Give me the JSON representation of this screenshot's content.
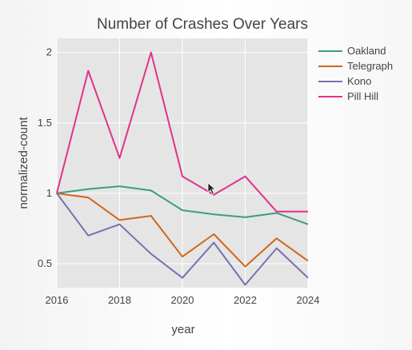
{
  "chart_data": {
    "type": "line",
    "title": "Number of Crashes Over Years",
    "xlabel": "year",
    "ylabel": "normalized-count",
    "x": [
      2016,
      2017,
      2018,
      2019,
      2020,
      2021,
      2022,
      2023,
      2024
    ],
    "xlim": [
      2016,
      2024
    ],
    "ylim": [
      0.33,
      2.1
    ],
    "x_ticks": [
      "2016",
      "2018",
      "2020",
      "2022",
      "2024"
    ],
    "y_ticks": [
      "0.5",
      "1",
      "1.5",
      "2"
    ],
    "grid": true,
    "legend_position": "right",
    "series": [
      {
        "name": "Oakland",
        "color": "#3a9f7e",
        "values": [
          1.0,
          1.03,
          1.05,
          1.02,
          0.88,
          0.85,
          0.83,
          0.86,
          0.78
        ]
      },
      {
        "name": "Telegraph",
        "color": "#d0661c",
        "values": [
          1.0,
          0.97,
          0.81,
          0.84,
          0.55,
          0.71,
          0.48,
          0.68,
          0.52
        ]
      },
      {
        "name": "Kono",
        "color": "#7a6fb0",
        "values": [
          1.0,
          0.7,
          0.78,
          0.57,
          0.4,
          0.65,
          0.35,
          0.61,
          0.4
        ]
      },
      {
        "name": "Pill Hill",
        "color": "#e0338b",
        "values": [
          1.0,
          1.87,
          1.25,
          2.0,
          1.12,
          0.99,
          1.12,
          0.87,
          0.87
        ]
      }
    ]
  }
}
